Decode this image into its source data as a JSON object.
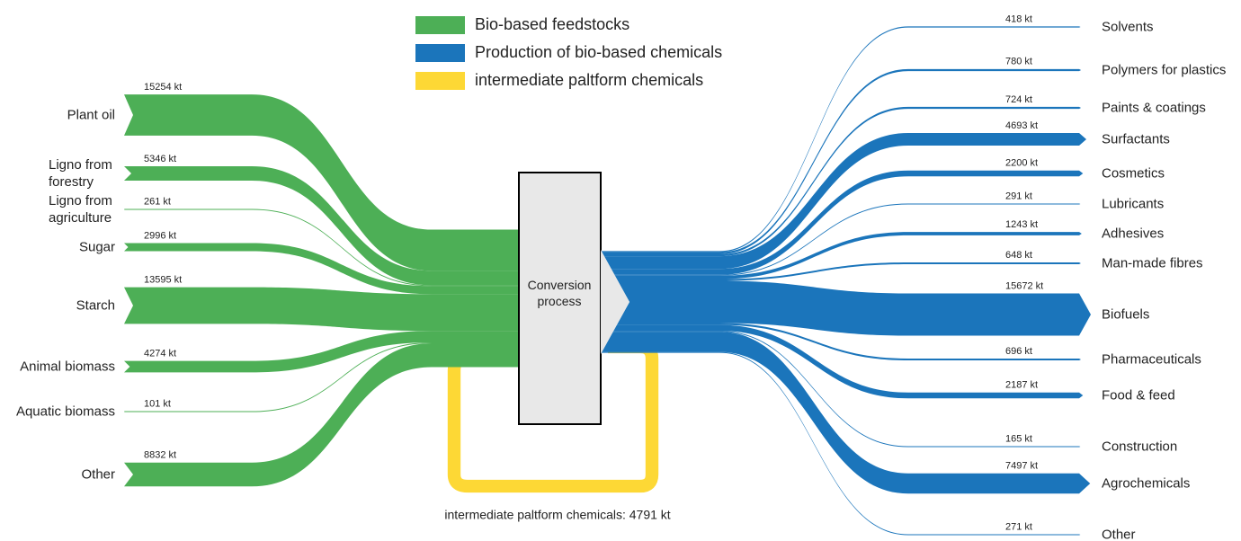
{
  "chart_data": {
    "type": "sankey",
    "legend": [
      {
        "name": "Bio-based feedstocks",
        "color": "#4daf56"
      },
      {
        "name": "Production of bio-based chemicals",
        "color": "#1b75bb"
      },
      {
        "name": "intermediate paltform chemicals",
        "color": "#fdd835"
      }
    ],
    "center_label": "Conversion process",
    "sources": {
      "names": [
        "Plant oil",
        "Ligno from forestry",
        "Ligno from agriculture",
        "Sugar",
        "Starch",
        "Animal biomass",
        "Aquatic biomass",
        "Other"
      ],
      "values": [
        15254,
        5346,
        261,
        2996,
        13595,
        4274,
        101,
        8832
      ],
      "value_labels": [
        "15254 kt",
        "5346 kt",
        "261 kt",
        "2996 kt",
        "13595 kt",
        "4274 kt",
        "101 kt",
        "8832 kt"
      ]
    },
    "targets": {
      "names": [
        "Solvents",
        "Polymers for plastics",
        "Paints & coatings",
        "Surfactants",
        "Cosmetics",
        "Lubricants",
        "Adhesives",
        "Man-made fibres",
        "Biofuels",
        "Pharmaceuticals",
        "Food & feed",
        "Construction",
        "Agrochemicals",
        "Other"
      ],
      "values": [
        418,
        780,
        724,
        4693,
        2200,
        291,
        1243,
        648,
        15672,
        696,
        2187,
        165,
        7497,
        271
      ],
      "value_labels": [
        "418 kt",
        "780 kt",
        "724 kt",
        "4693 kt",
        "2200 kt",
        "291 kt",
        "1243 kt",
        "648 kt",
        "15672 kt",
        "696 kt",
        "2187 kt",
        "165 kt",
        "7497 kt",
        "271 kt"
      ]
    },
    "loop": {
      "value": 4791,
      "label": "intermediate paltform chemicals: 4791 kt"
    }
  }
}
